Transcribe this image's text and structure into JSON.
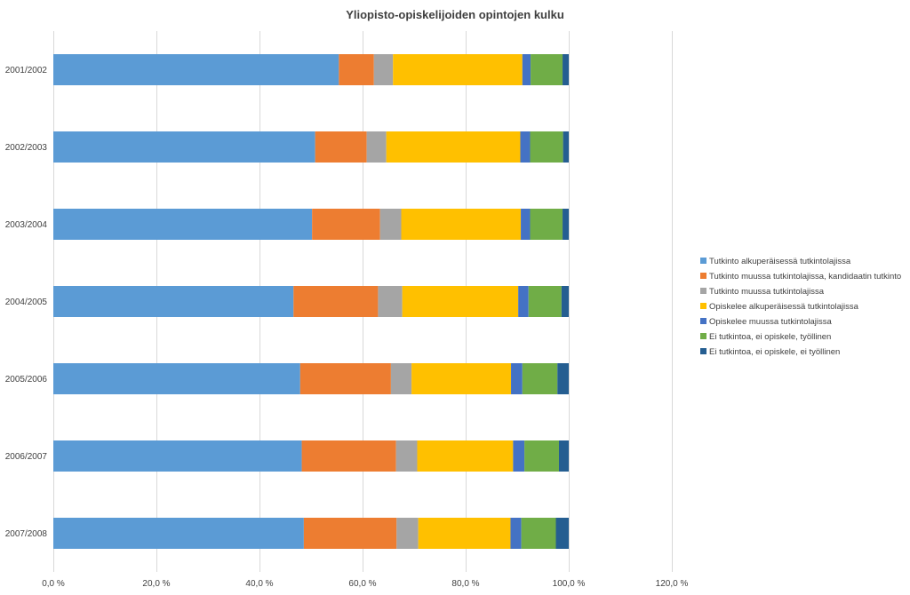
{
  "chart_data": {
    "type": "bar",
    "orientation": "horizontal",
    "stacked": true,
    "title": "Yliopisto-opiskelijoiden opintojen kulku",
    "xlabel": "",
    "ylabel": "",
    "xlim": [
      0,
      120
    ],
    "x_ticks": [
      "0,0 %",
      "20,0 %",
      "40,0 %",
      "60,0 %",
      "80,0 %",
      "100,0 %",
      "120,0 %"
    ],
    "x_tick_values": [
      0,
      20,
      40,
      60,
      80,
      100,
      120
    ],
    "grid": true,
    "legend_position": "right",
    "categories": [
      "2001/2002",
      "2002/2003",
      "2003/2004",
      "2004/2005",
      "2005/2006",
      "2006/2007",
      "2007/2008"
    ],
    "series": [
      {
        "name": "Tutkinto alkuperäisessä tutkintolajissa",
        "color": "#5b9bd5",
        "values": [
          55.4,
          50.8,
          50.2,
          46.6,
          47.9,
          48.2,
          48.6
        ]
      },
      {
        "name": "Tutkinto muussa tutkintolajissa, kandidaatin tutkinto",
        "color": "#ed7d31",
        "values": [
          6.8,
          10.0,
          13.2,
          16.4,
          17.6,
          18.3,
          18.0
        ]
      },
      {
        "name": "Tutkinto muussa tutkintolajissa",
        "color": "#a5a5a5",
        "values": [
          3.7,
          3.8,
          4.1,
          4.7,
          4.0,
          4.1,
          4.2
        ]
      },
      {
        "name": "Opiskelee alkuperäisessä tutkintolajissa",
        "color": "#ffc000",
        "values": [
          25.1,
          26.0,
          23.2,
          22.5,
          19.3,
          18.6,
          17.9
        ]
      },
      {
        "name": "Opiskelee muussa tutkintolajissa",
        "color": "#4472c4",
        "values": [
          1.6,
          1.9,
          1.8,
          2.0,
          2.2,
          2.2,
          2.1
        ]
      },
      {
        "name": "Ei tutkintoa, ei opiskele, työllinen",
        "color": "#70ad47",
        "values": [
          6.2,
          6.4,
          6.3,
          6.4,
          6.8,
          6.7,
          6.7
        ]
      },
      {
        "name": "Ei tutkintoa, ei opiskele, ei työllinen",
        "color": "#255e91",
        "values": [
          1.2,
          1.1,
          1.2,
          1.4,
          2.2,
          1.9,
          2.5
        ]
      }
    ]
  }
}
